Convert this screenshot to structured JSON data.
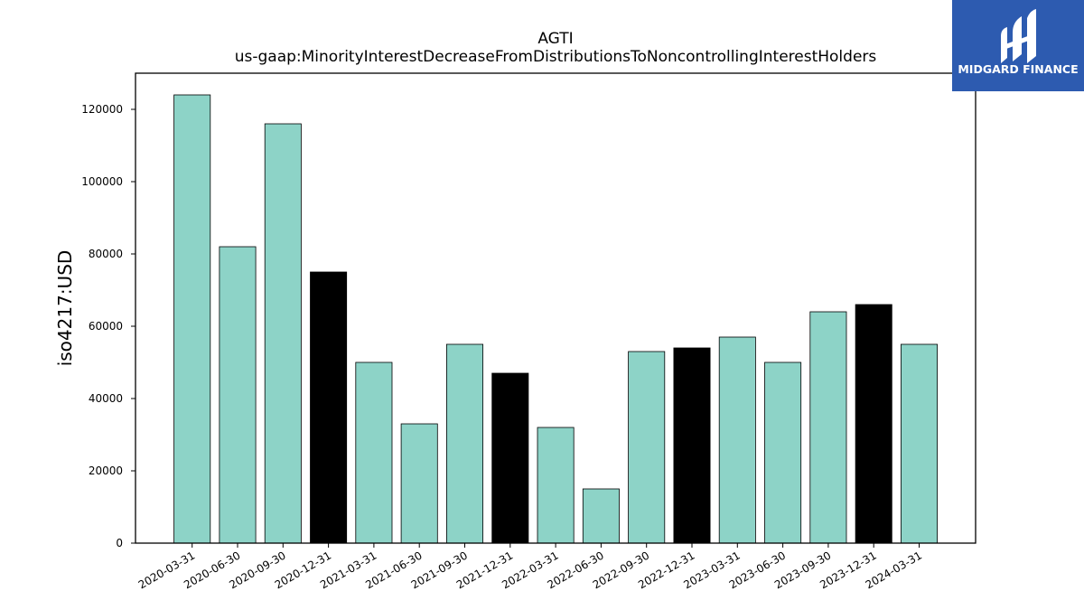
{
  "chart_data": {
    "type": "bar",
    "title": "AGTI",
    "subtitle": "us-gaap:MinorityInterestDecreaseFromDistributionsToNoncontrollingInterestHolders",
    "xlabel": "",
    "ylabel": "iso4217:USD",
    "ylim": [
      0,
      130000
    ],
    "yticks": [
      0,
      20000,
      40000,
      60000,
      80000,
      100000,
      120000
    ],
    "grid": false,
    "categories": [
      "2020-03-31",
      "2020-06-30",
      "2020-09-30",
      "2020-12-31",
      "2021-03-31",
      "2021-06-30",
      "2021-09-30",
      "2021-12-31",
      "2022-03-31",
      "2022-06-30",
      "2022-09-30",
      "2022-12-31",
      "2023-03-31",
      "2023-06-30",
      "2023-09-30",
      "2023-12-31",
      "2024-03-31"
    ],
    "values": [
      124000,
      82000,
      116000,
      75000,
      50000,
      33000,
      55000,
      47000,
      32000,
      15000,
      53000,
      54000,
      57000,
      50000,
      64000,
      66000,
      55000
    ],
    "bar_colors": [
      "#8dd3c7",
      "#8dd3c7",
      "#8dd3c7",
      "#000000",
      "#8dd3c7",
      "#8dd3c7",
      "#8dd3c7",
      "#000000",
      "#8dd3c7",
      "#8dd3c7",
      "#8dd3c7",
      "#000000",
      "#8dd3c7",
      "#8dd3c7",
      "#8dd3c7",
      "#000000",
      "#8dd3c7"
    ]
  },
  "brand": {
    "name": "MIDGARD FINANCE",
    "background_color": "#2d5bb0",
    "icon": "midgard-logo-icon"
  }
}
